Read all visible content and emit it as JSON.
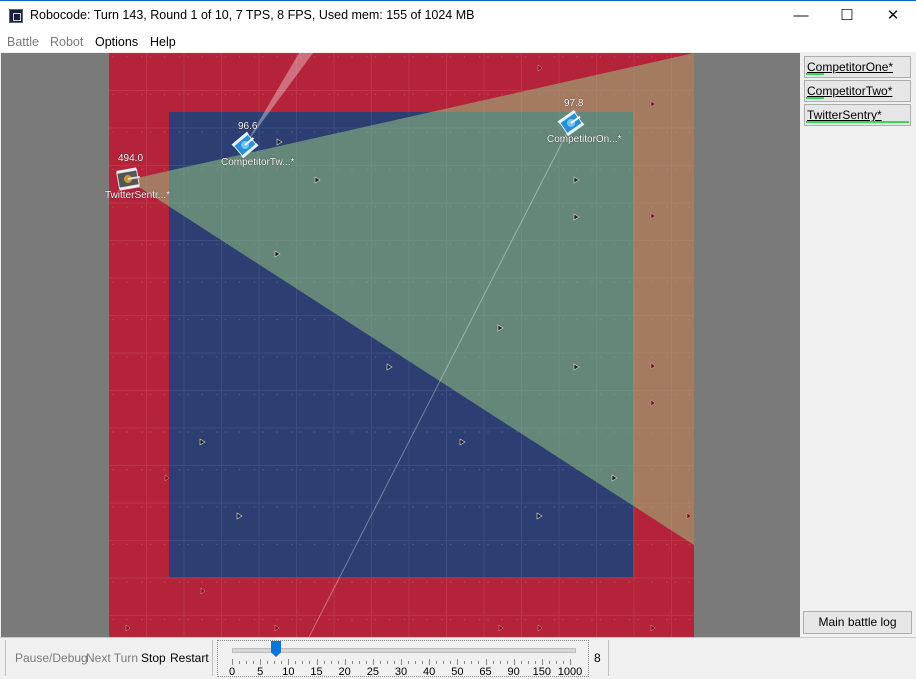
{
  "window": {
    "title": "Robocode: Turn 143, Round 1 of 10, 7 TPS, 8 FPS, Used mem: 155 of 1024 MB",
    "icon": "robocode-app-icon",
    "minimize_icon": "—",
    "maximize_icon": "☐",
    "close_icon": "✕"
  },
  "menu": [
    {
      "label": "Battle",
      "enabled": false
    },
    {
      "label": "Robot",
      "enabled": false
    },
    {
      "label": "Options",
      "enabled": true
    },
    {
      "label": "Help",
      "enabled": true
    }
  ],
  "arena": {
    "robots": [
      {
        "name": "TwitterSentr...*",
        "energy": "494.0",
        "color": "#e8e8e8"
      },
      {
        "name": "CompetitorTw...*",
        "energy": "96.6",
        "color": "#3aa9e6"
      },
      {
        "name": "CompetitorOn...*",
        "energy": "97.8",
        "color": "#3aa9e6"
      }
    ]
  },
  "sidebar": {
    "robots": [
      {
        "label": "CompetitorOne*",
        "energy_fraction": 0.18
      },
      {
        "label": "CompetitorTwo*",
        "energy_fraction": 0.18
      },
      {
        "label": "TwitterSentry*",
        "energy_fraction": 1.0
      }
    ],
    "main_log_label": "Main battle log"
  },
  "controls": {
    "pause_label": "Pause/Debug",
    "next_turn_label": "Next Turn",
    "stop_label": "Stop",
    "restart_label": "Restart"
  },
  "tps_slider": {
    "labels": [
      "0",
      "5",
      "10",
      "15",
      "20",
      "25",
      "30",
      "40",
      "50",
      "65",
      "90",
      "150",
      "1000"
    ],
    "value_label": "8"
  }
}
